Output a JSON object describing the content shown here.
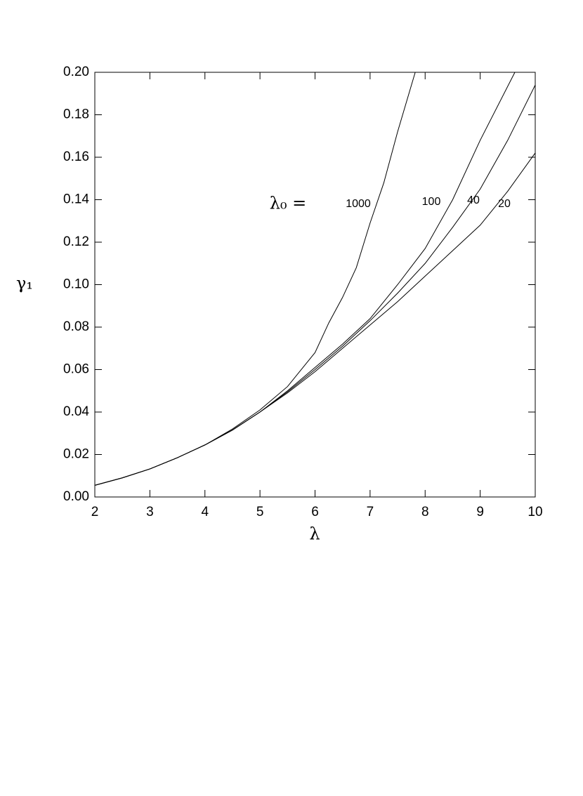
{
  "chart_data": {
    "type": "line",
    "x_label": "λ",
    "y_label": "γ₁",
    "annotation": "λ₀ =",
    "xlim": [
      2,
      10
    ],
    "ylim": [
      0,
      0.2
    ],
    "xticks": [
      2,
      3,
      4,
      5,
      6,
      7,
      8,
      9,
      10
    ],
    "yticks": [
      {
        "value": 0,
        "label": "0.00"
      },
      {
        "value": 0.02,
        "label": "0.02"
      },
      {
        "value": 0.04,
        "label": "0.04"
      },
      {
        "value": 0.06,
        "label": "0.06"
      },
      {
        "value": 0.08,
        "label": "0.08"
      },
      {
        "value": 0.1,
        "label": "0.10"
      },
      {
        "value": 0.12,
        "label": "0.12"
      },
      {
        "value": 0.14,
        "label": "0.14"
      },
      {
        "value": 0.16,
        "label": "0.16"
      },
      {
        "value": 0.18,
        "label": "0.18"
      },
      {
        "value": 0.2,
        "label": "0.20"
      }
    ],
    "series": [
      {
        "name": "1000",
        "color": "#000000",
        "x": [
          2,
          2.5,
          3,
          3.5,
          4,
          4.5,
          5,
          5.5,
          6,
          6.25,
          6.5,
          6.75,
          7,
          7.25,
          7.5,
          7.82
        ],
        "values": [
          0.0055,
          0.009,
          0.0132,
          0.0185,
          0.0245,
          0.032,
          0.041,
          0.052,
          0.068,
          0.082,
          0.094,
          0.108,
          0.129,
          0.148,
          0.172,
          0.2
        ]
      },
      {
        "name": "100",
        "color": "#000000",
        "x": [
          2,
          2.5,
          3,
          3.5,
          4,
          4.5,
          5,
          5.5,
          6,
          6.5,
          7,
          7.5,
          8,
          8.5,
          9,
          9.63
        ],
        "values": [
          0.0055,
          0.009,
          0.0132,
          0.0185,
          0.0245,
          0.0315,
          0.04,
          0.05,
          0.061,
          0.072,
          0.084,
          0.1,
          0.117,
          0.14,
          0.168,
          0.2
        ]
      },
      {
        "name": "40",
        "color": "#000000",
        "x": [
          2,
          2.5,
          3,
          3.5,
          4,
          4.5,
          5,
          5.5,
          6,
          6.5,
          7,
          7.5,
          8,
          8.5,
          9,
          9.5,
          10
        ],
        "values": [
          0.0055,
          0.009,
          0.0132,
          0.0185,
          0.0245,
          0.0315,
          0.04,
          0.0495,
          0.06,
          0.071,
          0.083,
          0.096,
          0.11,
          0.127,
          0.145,
          0.168,
          0.194
        ]
      },
      {
        "name": "20",
        "color": "#000000",
        "x": [
          2,
          2.5,
          3,
          3.5,
          4,
          4.5,
          5,
          5.5,
          6,
          6.5,
          7,
          7.5,
          8,
          8.5,
          9,
          9.5,
          10
        ],
        "values": [
          0.0055,
          0.009,
          0.0132,
          0.0185,
          0.0245,
          0.0315,
          0.04,
          0.049,
          0.059,
          0.07,
          0.081,
          0.092,
          0.104,
          0.116,
          0.128,
          0.144,
          0.162
        ]
      }
    ]
  }
}
